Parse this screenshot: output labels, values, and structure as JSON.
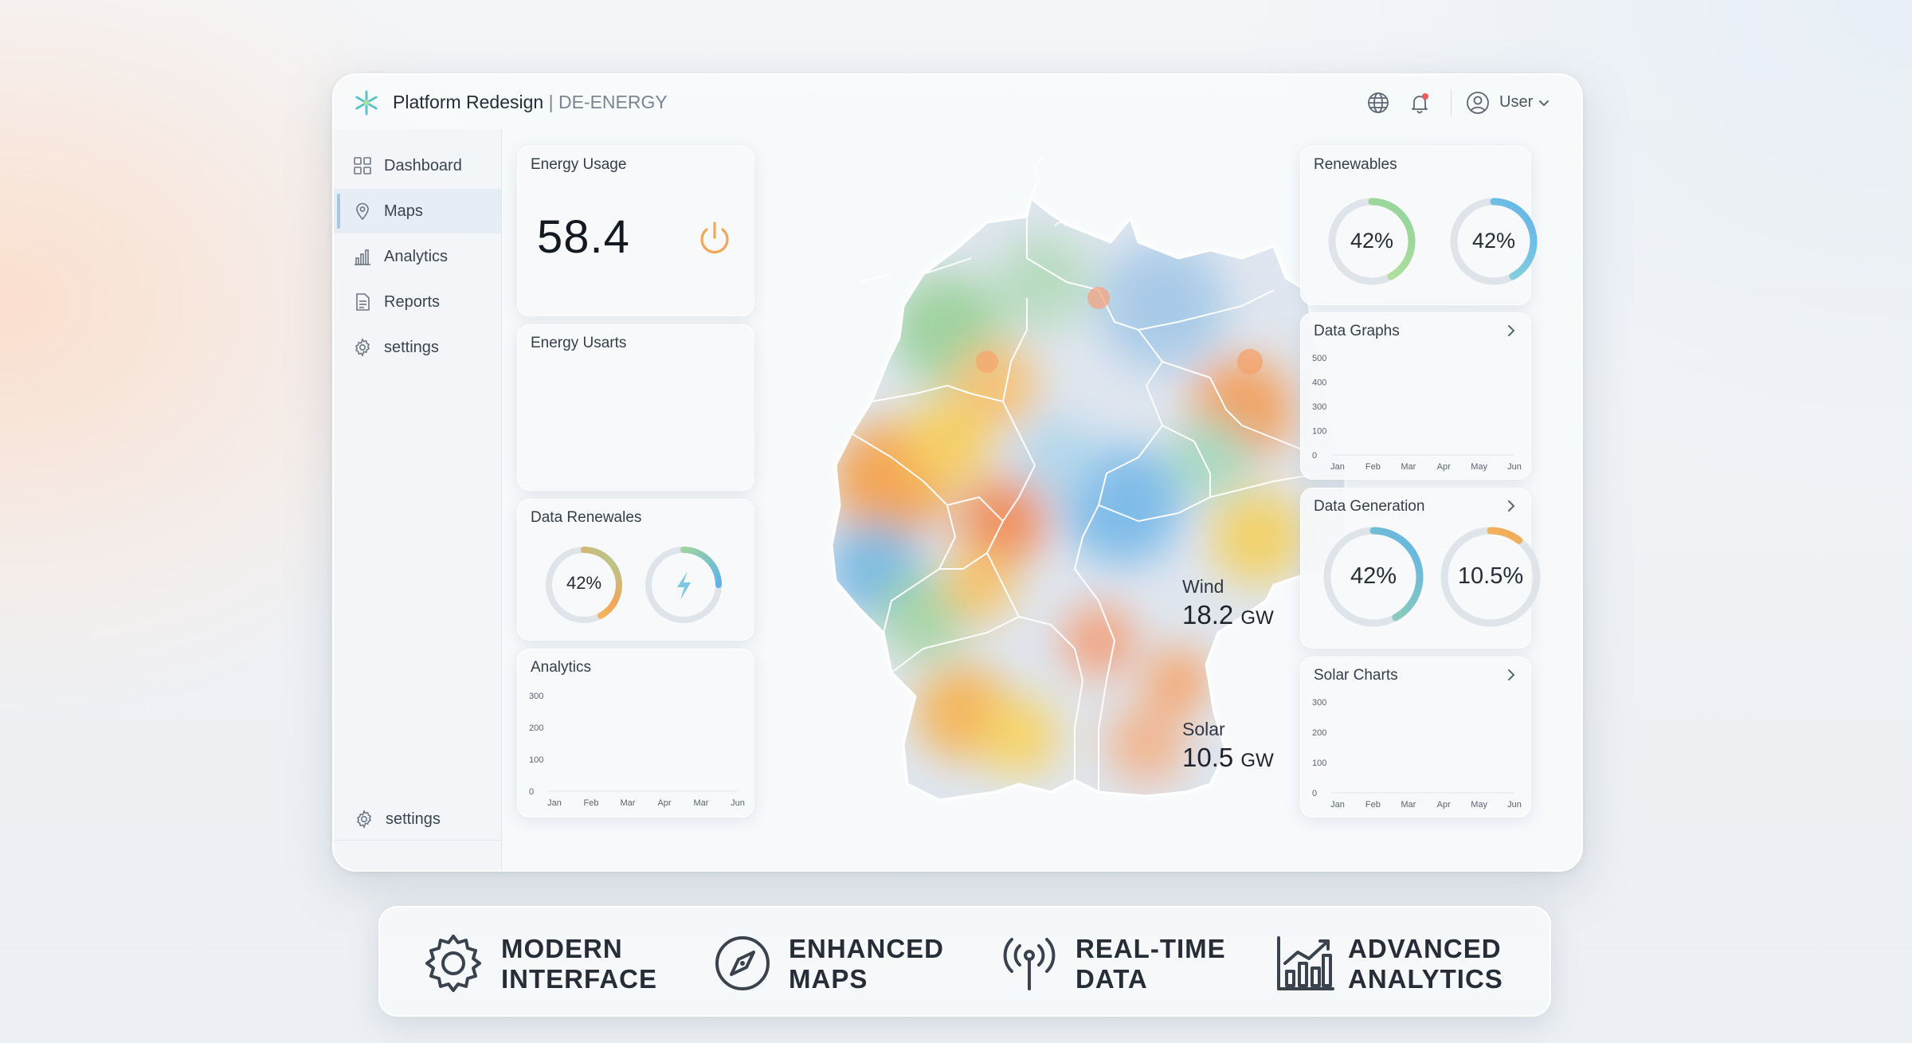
{
  "app": {
    "brand": "Platform Redesign",
    "separator": " | ",
    "subtitle": "DE-ENERGY",
    "user_label": "User"
  },
  "sidebar": {
    "items": [
      {
        "label": "Dashboard",
        "icon": "grid-icon"
      },
      {
        "label": "Maps",
        "icon": "map-pin-icon",
        "active": true
      },
      {
        "label": "Analytics",
        "icon": "bar-chart-icon"
      },
      {
        "label": "Reports",
        "icon": "document-icon"
      },
      {
        "label": "settings",
        "icon": "gear-icon"
      }
    ],
    "footer_label": "settings"
  },
  "cards": {
    "energy_usage": {
      "title": "Energy Usage",
      "value": "58.4"
    },
    "energy_usarts": {
      "title": "Energy Usarts"
    },
    "data_renewales": {
      "title": "Data Renewales",
      "donut_label": "42%",
      "donut_value": 0.42
    },
    "analytics": {
      "title": "Analytics",
      "y_ticks": [
        "300",
        "200",
        "100",
        "0"
      ],
      "x_ticks": [
        "Jan",
        "Feb",
        "Mar",
        "Apr",
        "Mar",
        "Jun"
      ]
    },
    "renewables": {
      "title": "Renewables",
      "donuts": [
        {
          "label": "42%",
          "value": 0.42
        },
        {
          "label": "42%",
          "value": 0.42
        }
      ]
    },
    "data_graphs": {
      "title": "Data Graphs",
      "y_ticks": [
        "500",
        "400",
        "300",
        "100",
        "0"
      ],
      "x_ticks": [
        "Jan",
        "Feb",
        "Mar",
        "Apr",
        "May",
        "Jun"
      ]
    },
    "data_generation": {
      "title": "Data Generation",
      "donuts": [
        {
          "label": "42%",
          "value": 0.42
        },
        {
          "label": "10.5%",
          "value": 0.105
        }
      ]
    },
    "solar_charts": {
      "title": "Solar Charts",
      "y_ticks": [
        "300",
        "200",
        "100",
        "0"
      ],
      "x_ticks": [
        "Jan",
        "Feb",
        "Mar",
        "Apr",
        "May",
        "Jun"
      ]
    }
  },
  "map": {
    "wind": {
      "label": "Wind",
      "value": "18.2",
      "unit": "GW"
    },
    "solar": {
      "label": "Solar",
      "value": "10.5",
      "unit": "GW"
    }
  },
  "features": [
    {
      "line1": "MODERN",
      "line2": "INTERFACE",
      "icon": "gear-icon"
    },
    {
      "line1": "ENHANCED",
      "line2": "MAPS",
      "icon": "compass-icon"
    },
    {
      "line1": "REAL-TIME",
      "line2": "DATA",
      "icon": "broadcast-icon"
    },
    {
      "line1": "ADVANCED",
      "line2": "ANALYTICS",
      "icon": "growth-chart-icon"
    }
  ],
  "colors": {
    "accent_blue": "#5fb3e8",
    "accent_green": "#8fd39a",
    "accent_orange": "#f2a65a",
    "accent_yellow": "#f4d35e",
    "notification": "#f05a5a"
  }
}
